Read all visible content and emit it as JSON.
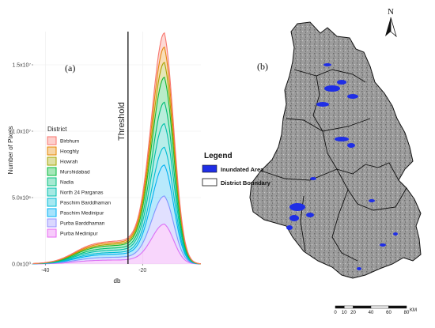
{
  "panel_a_label": "(a)",
  "panel_b_label": "(b)",
  "threshold_label": "Threshold",
  "north_label": "N",
  "map_legend": {
    "title": "Legend",
    "items": [
      "Inundated Area",
      "District Boundary"
    ],
    "inundated_color": "#1f2ee6"
  },
  "scale_bar": {
    "labels": [
      "0",
      "10",
      "20",
      "40",
      "60",
      "80"
    ],
    "values": [
      0,
      10,
      20,
      40,
      60,
      80
    ],
    "unit": "KM"
  },
  "chart_data": {
    "type": "area",
    "stacked": true,
    "xlabel": "db",
    "ylabel": "Number of Pixels",
    "x_ticks": [
      -40,
      -20
    ],
    "x_tick_labels": [
      "-40",
      "-20"
    ],
    "y_ticks": [
      0,
      5000000,
      10000000,
      15000000
    ],
    "y_tick_labels": [
      "0.0x10⁰",
      "5.0x10⁶",
      "1.0x10⁷",
      "1.5x10⁷"
    ],
    "xlim": [
      -42.5,
      -8
    ],
    "ylim": [
      0,
      17500000
    ],
    "threshold": -23,
    "legend_title": "District",
    "legend_position": "left",
    "peak_x": -15.5,
    "series": [
      {
        "name": "Birbhum",
        "color": "#f8766d",
        "peak": 960000,
        "base": 110000
      },
      {
        "name": "Hooghly",
        "color": "#e58700",
        "peak": 1040000,
        "base": 120000
      },
      {
        "name": "Howrah",
        "color": "#a3a500",
        "peak": 1000000,
        "base": 110000
      },
      {
        "name": "Murshidabad",
        "color": "#00ba38",
        "peak": 1700000,
        "base": 200000
      },
      {
        "name": "Nadia",
        "color": "#00bf7d",
        "peak": 1450000,
        "base": 170000
      },
      {
        "name": "North 24 Parganas",
        "color": "#00c0af",
        "peak": 1600000,
        "base": 190000
      },
      {
        "name": "Paschim Barddhaman",
        "color": "#00bcd8",
        "peak": 1200000,
        "base": 140000
      },
      {
        "name": "Paschim Medinipur",
        "color": "#00b0f6",
        "peak": 2100000,
        "base": 250000
      },
      {
        "name": "Purba Barddhaman",
        "color": "#9590ff",
        "peak": 1900000,
        "base": 230000
      },
      {
        "name": "Purba Medinipur",
        "color": "#e76bf3",
        "peak": 2700000,
        "base": 330000
      }
    ]
  }
}
